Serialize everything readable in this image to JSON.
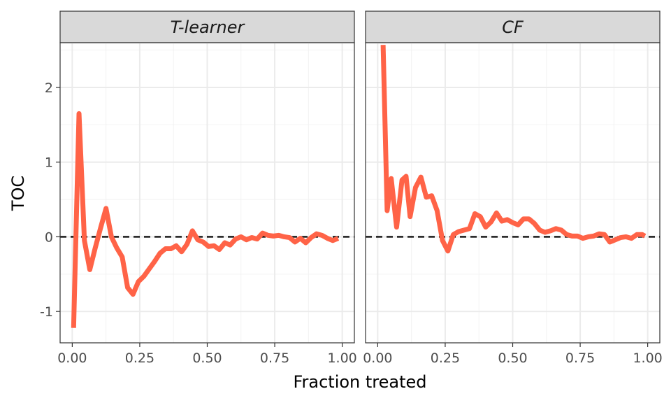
{
  "chart_data": {
    "type": "line",
    "xlabel": "Fraction treated",
    "ylabel": "TOC",
    "xlim": [
      -0.045,
      1.045
    ],
    "ylim": [
      -1.42,
      2.6
    ],
    "x_ticks": [
      0.0,
      0.25,
      0.5,
      0.75,
      1.0
    ],
    "x_tick_labels": [
      "0.00",
      "0.25",
      "0.50",
      "0.75",
      "1.00"
    ],
    "y_ticks": [
      -1,
      0,
      1,
      2
    ],
    "y_tick_labels": [
      "-1",
      "0",
      "1",
      "2"
    ],
    "grid": true,
    "reference_line": {
      "y": 0,
      "style": "dashed",
      "color": "#000000"
    },
    "line_color": "#ff6347",
    "facets": [
      {
        "label": "T-learner",
        "x": [
          0.005,
          0.025,
          0.045,
          0.065,
          0.085,
          0.105,
          0.125,
          0.145,
          0.165,
          0.185,
          0.205,
          0.225,
          0.245,
          0.265,
          0.285,
          0.305,
          0.325,
          0.345,
          0.365,
          0.385,
          0.405,
          0.425,
          0.445,
          0.465,
          0.485,
          0.505,
          0.525,
          0.545,
          0.565,
          0.585,
          0.605,
          0.625,
          0.645,
          0.665,
          0.685,
          0.705,
          0.725,
          0.745,
          0.765,
          0.785,
          0.805,
          0.825,
          0.845,
          0.865,
          0.885,
          0.905,
          0.925,
          0.945,
          0.965,
          0.985
        ],
        "y": [
          -1.22,
          1.65,
          -0.05,
          -0.44,
          -0.15,
          0.12,
          0.38,
          0.0,
          -0.15,
          -0.27,
          -0.68,
          -0.77,
          -0.6,
          -0.53,
          -0.43,
          -0.33,
          -0.22,
          -0.16,
          -0.16,
          -0.12,
          -0.2,
          -0.1,
          0.08,
          -0.04,
          -0.07,
          -0.13,
          -0.12,
          -0.17,
          -0.08,
          -0.11,
          -0.03,
          0.0,
          -0.04,
          -0.01,
          -0.03,
          0.05,
          0.02,
          0.01,
          0.02,
          0.0,
          -0.01,
          -0.07,
          -0.02,
          -0.08,
          -0.01,
          0.04,
          0.02,
          -0.02,
          -0.05,
          -0.02
        ]
      },
      {
        "label": "CF",
        "x": [
          0.02,
          0.035,
          0.05,
          0.07,
          0.09,
          0.105,
          0.12,
          0.14,
          0.16,
          0.18,
          0.2,
          0.22,
          0.24,
          0.26,
          0.28,
          0.3,
          0.32,
          0.34,
          0.36,
          0.38,
          0.4,
          0.42,
          0.44,
          0.46,
          0.48,
          0.5,
          0.52,
          0.54,
          0.56,
          0.58,
          0.6,
          0.62,
          0.64,
          0.66,
          0.68,
          0.7,
          0.72,
          0.74,
          0.76,
          0.78,
          0.8,
          0.82,
          0.84,
          0.86,
          0.88,
          0.9,
          0.92,
          0.94,
          0.96,
          0.98,
          0.99
        ],
        "y": [
          2.57,
          0.35,
          0.78,
          0.13,
          0.76,
          0.81,
          0.27,
          0.66,
          0.8,
          0.53,
          0.55,
          0.35,
          -0.05,
          -0.19,
          0.03,
          0.07,
          0.09,
          0.11,
          0.31,
          0.27,
          0.13,
          0.2,
          0.32,
          0.21,
          0.23,
          0.19,
          0.16,
          0.24,
          0.24,
          0.18,
          0.09,
          0.06,
          0.08,
          0.11,
          0.09,
          0.03,
          0.01,
          0.01,
          -0.02,
          0.0,
          0.01,
          0.04,
          0.03,
          -0.07,
          -0.04,
          -0.01,
          0.0,
          -0.02,
          0.03,
          0.03,
          0.01
        ]
      }
    ]
  }
}
